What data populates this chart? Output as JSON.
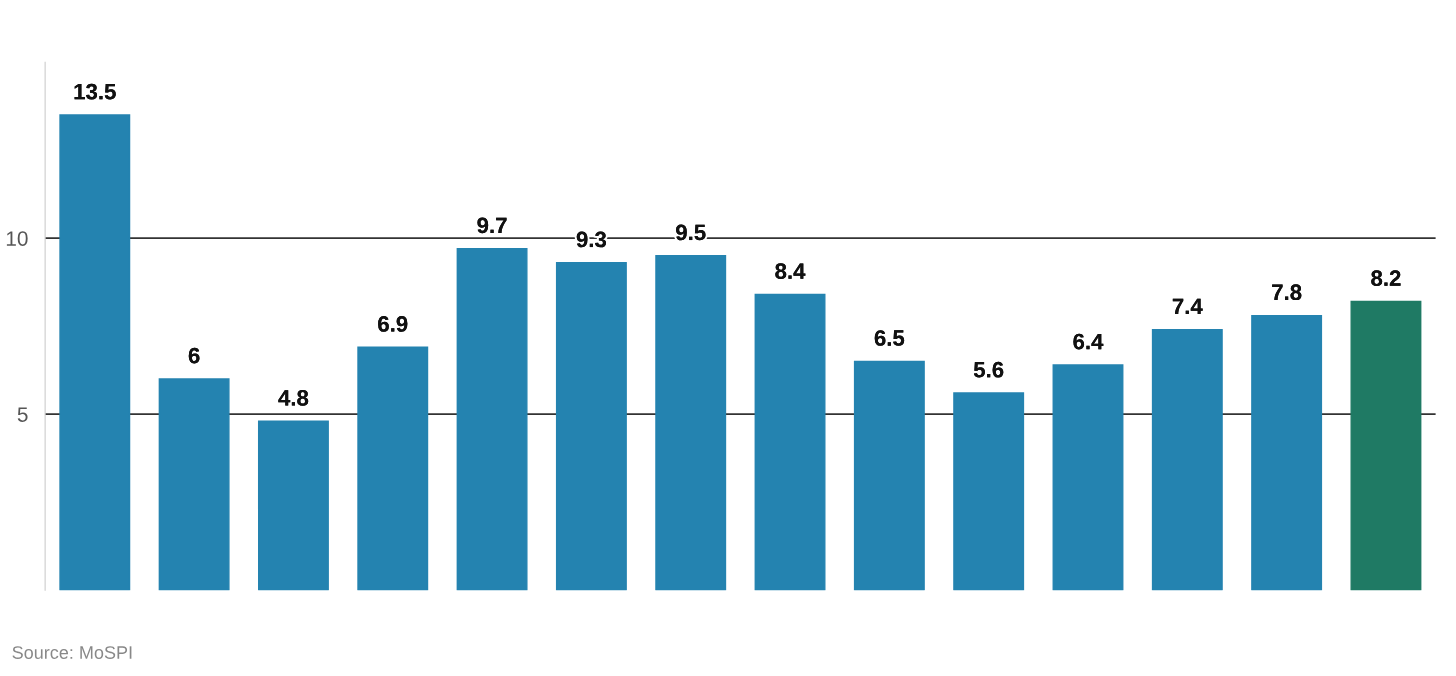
{
  "chart_data": {
    "type": "bar",
    "categories": [
      null,
      null,
      null,
      null,
      null,
      null,
      null,
      null,
      null,
      null,
      null,
      null,
      null,
      null
    ],
    "values": [
      13.5,
      6,
      4.8,
      6.9,
      9.7,
      9.3,
      9.5,
      8.4,
      6.5,
      5.6,
      6.4,
      7.4,
      7.8,
      8.2
    ],
    "colors": [
      "#2483b0",
      "#2483b0",
      "#2483b0",
      "#2483b0",
      "#2483b0",
      "#2483b0",
      "#2483b0",
      "#2483b0",
      "#2483b0",
      "#2483b0",
      "#2483b0",
      "#2483b0",
      "#2483b0",
      "#1f7a64"
    ],
    "ylim": [
      0,
      15
    ],
    "yticks": [
      5,
      10
    ],
    "grid": "y",
    "tick_labels": "y",
    "data_labels": true,
    "annotations": [
      "Source: MoSPI"
    ]
  }
}
